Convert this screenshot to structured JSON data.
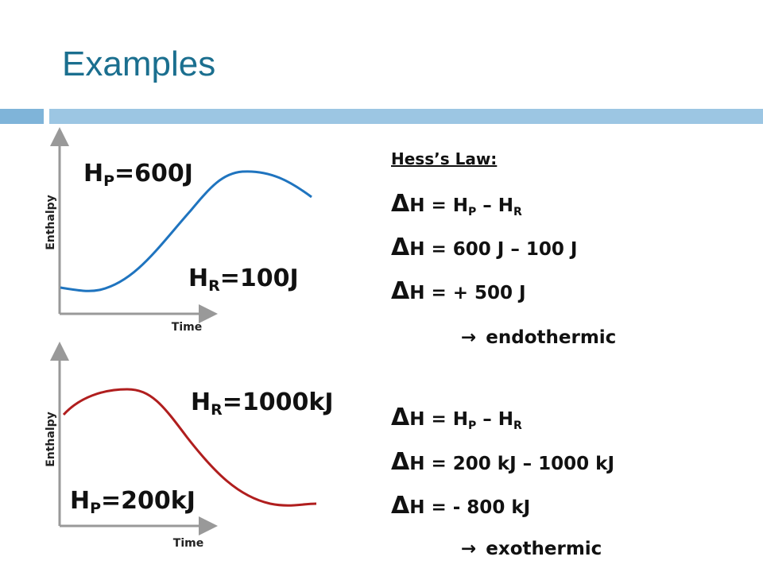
{
  "title": "Examples",
  "diagrams": [
    {
      "y_label": "Enthalpy",
      "x_label": "Time",
      "labels": [
        {
          "symbol": "H",
          "subscript": "P",
          "value": "=600J"
        },
        {
          "symbol": "H",
          "subscript": "R",
          "value": "=100J"
        }
      ]
    },
    {
      "y_label": "Enthalpy",
      "x_label": "Time",
      "labels": [
        {
          "symbol": "H",
          "subscript": "R",
          "value": "=1000kJ"
        },
        {
          "symbol": "H",
          "subscript": "P",
          "value": "=200kJ"
        }
      ]
    }
  ],
  "hess_law": {
    "heading": "Hess’s Law:",
    "examples": [
      {
        "lines": [
          {
            "delta": "Δ",
            "text": "H = H",
            "sub1": "P",
            "text2": " – H",
            "sub2": "R"
          },
          {
            "delta": "Δ",
            "text": "H = 600 J – 100 J"
          },
          {
            "delta": "Δ",
            "text": "H =  + 500 J"
          }
        ],
        "conclusion": {
          "arrow": "→",
          "text": "endothermic"
        }
      },
      {
        "lines": [
          {
            "delta": "Δ",
            "text": "H = H",
            "sub1": "P",
            "text2": " – H",
            "sub2": "R"
          },
          {
            "delta": "Δ",
            "text": "H = 200 kJ – 1000 kJ"
          },
          {
            "delta": "Δ",
            "text": "H =  - 800  kJ"
          }
        ],
        "conclusion": {
          "arrow": "→",
          "text": "exothermic"
        }
      }
    ]
  }
}
